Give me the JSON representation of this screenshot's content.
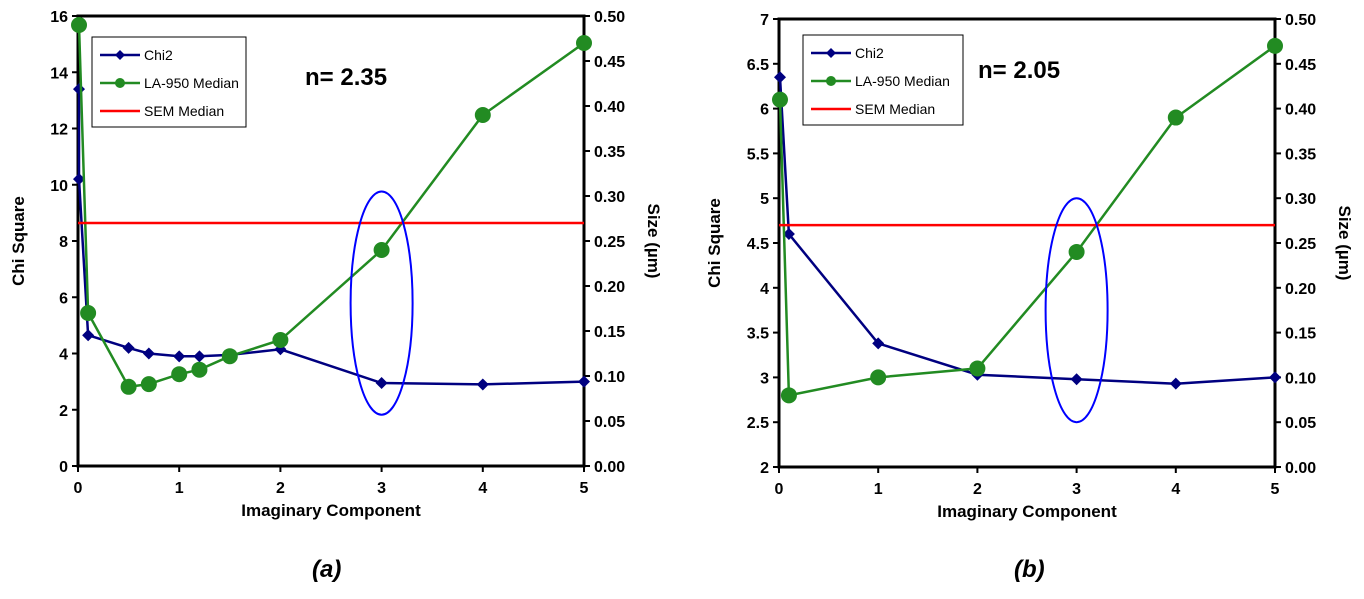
{
  "captions": [
    "(a)",
    "(b)"
  ],
  "chart_data": [
    {
      "type": "line",
      "xlabel": "Imaginary Component",
      "ylabel": "Chi Square",
      "y2label": "Size (µm)",
      "xlim": [
        0,
        5
      ],
      "ylim": [
        0,
        16
      ],
      "y2lim": [
        0.0,
        0.5
      ],
      "x_ticks": [
        "0",
        "1",
        "2",
        "3",
        "4",
        "5"
      ],
      "y_ticks": [
        "0",
        "2",
        "4",
        "6",
        "8",
        "10",
        "12",
        "14",
        "16"
      ],
      "y2_ticks": [
        "0.00",
        "0.05",
        "0.10",
        "0.15",
        "0.20",
        "0.25",
        "0.30",
        "0.35",
        "0.40",
        "0.45",
        "0.50"
      ],
      "annotation": "n= 2.35",
      "legend": [
        "Chi2",
        "LA-950 Median",
        "SEM Median"
      ],
      "series": [
        {
          "name": "Chi2",
          "axis": "left",
          "color": "#000080",
          "marker": "diamond",
          "x": [
            0.01,
            0.01,
            0.1,
            0.5,
            0.7,
            1.0,
            1.2,
            1.5,
            2.0,
            3.0,
            4.0,
            5.0
          ],
          "y": [
            13.4,
            10.2,
            4.65,
            4.2,
            4.0,
            3.9,
            3.9,
            3.95,
            4.15,
            2.95,
            2.9,
            3.0
          ]
        },
        {
          "name": "LA-950 Median",
          "axis": "right",
          "color": "#228B22",
          "marker": "circle",
          "x": [
            0.01,
            0.1,
            0.5,
            0.7,
            1.0,
            1.2,
            1.5,
            2.0,
            3.0,
            4.0,
            5.0
          ],
          "y": [
            0.49,
            0.17,
            0.088,
            0.091,
            0.102,
            0.107,
            0.122,
            0.14,
            0.24,
            0.39,
            0.47
          ]
        },
        {
          "name": "SEM Median",
          "axis": "right",
          "color": "#FF0000",
          "marker": "none",
          "x": [
            0,
            5
          ],
          "y": [
            0.27,
            0.27
          ]
        }
      ],
      "highlight_ellipse": {
        "x": 3.0,
        "y2_top": 0.305,
        "y2_bottom": 0.057
      }
    },
    {
      "type": "line",
      "xlabel": "Imaginary Component",
      "ylabel": "Chi Square",
      "y2label": "Size (µm)",
      "xlim": [
        0,
        5
      ],
      "ylim": [
        2,
        7
      ],
      "y2lim": [
        0.0,
        0.5
      ],
      "x_ticks": [
        "0",
        "1",
        "2",
        "3",
        "4",
        "5"
      ],
      "y_ticks": [
        "2",
        "2.5",
        "3",
        "3.5",
        "4",
        "4.5",
        "5",
        "5.5",
        "6",
        "6.5",
        "7"
      ],
      "y2_ticks": [
        "0.00",
        "0.05",
        "0.10",
        "0.15",
        "0.20",
        "0.25",
        "0.30",
        "0.35",
        "0.40",
        "0.45",
        "0.50"
      ],
      "annotation": "n= 2.05",
      "legend": [
        "Chi2",
        "LA-950 Median",
        "SEM Median"
      ],
      "series": [
        {
          "name": "Chi2",
          "axis": "left",
          "color": "#000080",
          "marker": "diamond",
          "x": [
            0.01,
            0.1,
            1.0,
            2.0,
            3.0,
            4.0,
            5.0
          ],
          "y": [
            6.35,
            4.6,
            3.38,
            3.03,
            2.98,
            2.93,
            3.0
          ]
        },
        {
          "name": "LA-950 Median",
          "axis": "right",
          "color": "#228B22",
          "marker": "circle",
          "x": [
            0.01,
            0.1,
            1.0,
            2.0,
            3.0,
            4.0,
            5.0
          ],
          "y": [
            0.41,
            0.08,
            0.1,
            0.11,
            0.24,
            0.39,
            0.47
          ]
        },
        {
          "name": "SEM Median",
          "axis": "right",
          "color": "#FF0000",
          "marker": "none",
          "x": [
            0,
            5
          ],
          "y": [
            0.27,
            0.27
          ]
        }
      ],
      "highlight_ellipse": {
        "x": 3.0,
        "y2_top": 0.3,
        "y2_bottom": 0.05
      }
    }
  ]
}
